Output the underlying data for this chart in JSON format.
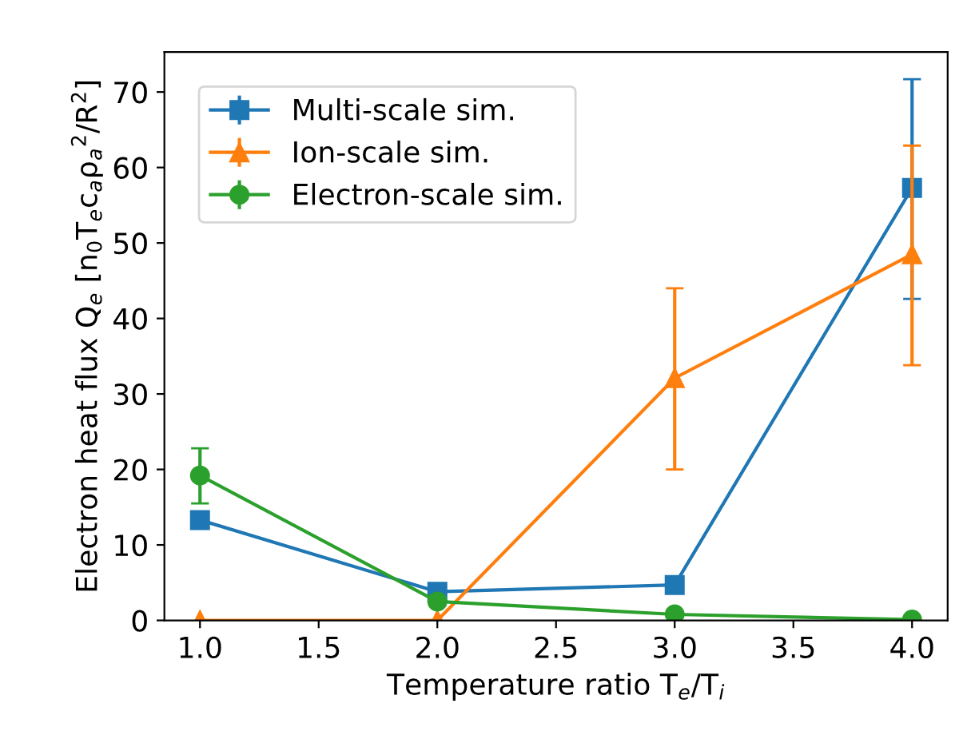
{
  "chart_data": {
    "type": "line",
    "xlabel": "Temperature ratio T$_{e}$/T$_{i}$",
    "ylabel": "Electron heat flux Q$_{e}$ [n$_{0}$T$_{e}$c$_{a}$ρ$_{a}$$^{2}$/R$^{2}$]",
    "x": [
      1.0,
      2.0,
      3.0,
      4.0
    ],
    "series": [
      {
        "name": "Multi-scale sim.",
        "color": "#1f77b4",
        "marker": "square",
        "values": [
          13.3,
          3.8,
          4.7,
          57.3
        ],
        "errors": [
          null,
          null,
          null,
          [
            42.6,
            71.7
          ]
        ]
      },
      {
        "name": "Ion-scale sim.",
        "color": "#ff7f0e",
        "marker": "triangle",
        "values": [
          0,
          0,
          32.1,
          48.5
        ],
        "errors": [
          null,
          null,
          [
            20,
            44
          ],
          [
            33.8,
            62.9
          ]
        ]
      },
      {
        "name": "Electron-scale sim.",
        "color": "#2ca02c",
        "marker": "circle",
        "values": [
          19.2,
          2.5,
          0.8,
          0.1
        ],
        "errors": [
          [
            15.5,
            22.8
          ],
          null,
          null,
          null
        ]
      }
    ],
    "xlim": [
      0.85,
      4.15
    ],
    "ylim": [
      0,
      75.3
    ],
    "xticks": [
      {
        "value": 1.0,
        "label": "1.0"
      },
      {
        "value": 1.5,
        "label": "1.5"
      },
      {
        "value": 2.0,
        "label": "2.0"
      },
      {
        "value": 2.5,
        "label": "2.5"
      },
      {
        "value": 3.0,
        "label": "3.0"
      },
      {
        "value": 3.5,
        "label": "3.5"
      },
      {
        "value": 4.0,
        "label": "4.0"
      }
    ],
    "yticks": [
      0,
      10,
      20,
      30,
      40,
      50,
      60,
      70
    ],
    "legend": "top left",
    "grid": false
  }
}
